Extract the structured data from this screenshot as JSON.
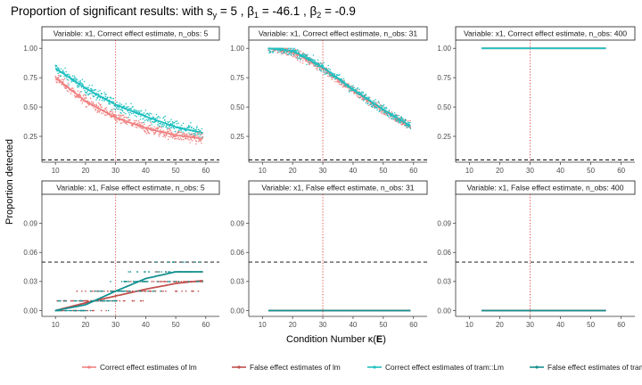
{
  "chart_data": {
    "type": "scatter",
    "title": {
      "prefix": "Proportion of significant results:  with s",
      "sub": "y",
      "s_value": " = 5 ,",
      "b1_label": "β",
      "b1_sub": "1",
      "b1_value": " = -46.1 ,",
      "b2_label": "β",
      "b2_sub": "2",
      "b2_value": " = -0.9"
    },
    "xlabel": {
      "main": "Condition Number κ(",
      "bold": "E",
      "end": ")"
    },
    "ylabel": "Proportion detected",
    "xlim": [
      5.5,
      64.5
    ],
    "xticks": [
      10,
      20,
      30,
      40,
      50,
      60
    ],
    "grid": false,
    "colors": {
      "correct_lm": "#F08080",
      "false_lm": "#C0504D",
      "correct_tram": "#20C0C0",
      "false_tram": "#159090",
      "threshold_line": "#000000",
      "kappa_line": "#E03030"
    },
    "reference_lines": {
      "y_dashed": 0.05,
      "x_dotted": 30
    },
    "rows": [
      {
        "ylim": [
          0.03,
          1.07
        ],
        "yticks": [
          0.25,
          0.5,
          0.75,
          1.0
        ],
        "ytick_labels": [
          "0.25",
          "0.50",
          "0.75",
          "1.00"
        ]
      },
      {
        "ylim": [
          -0.006,
          0.12
        ],
        "yticks": [
          0.0,
          0.03,
          0.06,
          0.09
        ],
        "ytick_labels": [
          "0.00",
          "0.03",
          "0.06",
          "0.09"
        ]
      }
    ],
    "panels": [
      {
        "strip": "Variable: x1, Correct effect estimate, n_obs: 5",
        "row": 0,
        "col": 0,
        "series": [
          {
            "key": "correct_tram",
            "x_range": [
              10,
              59
            ],
            "trend": [
              [
                10,
                0.83
              ],
              [
                20,
                0.66
              ],
              [
                30,
                0.52
              ],
              [
                40,
                0.42
              ],
              [
                50,
                0.33
              ],
              [
                59,
                0.28
              ]
            ],
            "scatter": 0.05
          },
          {
            "key": "correct_lm",
            "x_range": [
              10,
              59
            ],
            "trend": [
              [
                10,
                0.75
              ],
              [
                20,
                0.55
              ],
              [
                30,
                0.41
              ],
              [
                40,
                0.32
              ],
              [
                50,
                0.26
              ],
              [
                59,
                0.23
              ]
            ],
            "scatter": 0.045
          }
        ]
      },
      {
        "strip": "Variable: x1, Correct effect estimate, n_obs: 31",
        "row": 0,
        "col": 1,
        "series": [
          {
            "key": "correct_lm",
            "x_range": [
              12,
              59
            ],
            "trend": [
              [
                12,
                1.0
              ],
              [
                20,
                0.97
              ],
              [
                30,
                0.83
              ],
              [
                40,
                0.64
              ],
              [
                50,
                0.47
              ],
              [
                59,
                0.33
              ]
            ],
            "scatter": 0.04
          },
          {
            "key": "correct_tram",
            "x_range": [
              12,
              59
            ],
            "trend": [
              [
                12,
                1.0
              ],
              [
                20,
                0.98
              ],
              [
                30,
                0.84
              ],
              [
                40,
                0.65
              ],
              [
                50,
                0.48
              ],
              [
                59,
                0.34
              ]
            ],
            "scatter": 0.04
          }
        ]
      },
      {
        "strip": "Variable: x1, Correct effect estimate, n_obs: 400",
        "row": 0,
        "col": 2,
        "series": [
          {
            "key": "correct_lm",
            "x_range": [
              14,
              55
            ],
            "trend": [
              [
                14,
                1.0
              ],
              [
                55,
                1.0
              ]
            ],
            "scatter": 0.0
          },
          {
            "key": "correct_tram",
            "x_range": [
              14,
              55
            ],
            "trend": [
              [
                14,
                1.0
              ],
              [
                55,
                1.0
              ]
            ],
            "scatter": 0.0
          }
        ]
      },
      {
        "strip": "Variable: x1, False effect estimate, n_obs: 5",
        "row": 1,
        "col": 0,
        "series": [
          {
            "key": "false_lm",
            "x_range": [
              10,
              59
            ],
            "trend": [
              [
                10,
                0.0
              ],
              [
                20,
                0.008
              ],
              [
                30,
                0.015
              ],
              [
                40,
                0.022
              ],
              [
                50,
                0.028
              ],
              [
                59,
                0.031
              ]
            ],
            "scatter": 0.0,
            "levels": [
              0.0,
              0.01,
              0.02,
              0.03,
              0.04
            ]
          },
          {
            "key": "false_tram",
            "x_range": [
              10,
              59
            ],
            "trend": [
              [
                10,
                0.0
              ],
              [
                20,
                0.006
              ],
              [
                30,
                0.02
              ],
              [
                40,
                0.033
              ],
              [
                50,
                0.04
              ],
              [
                59,
                0.04
              ]
            ],
            "scatter": 0.0,
            "levels": [
              0.0,
              0.01,
              0.02,
              0.03,
              0.04,
              0.05,
              0.06,
              0.07,
              0.08,
              0.09,
              0.1
            ]
          }
        ]
      },
      {
        "strip": "Variable: x1, False effect estimate, n_obs: 31",
        "row": 1,
        "col": 1,
        "series": [
          {
            "key": "false_lm",
            "x_range": [
              12,
              59
            ],
            "trend": [
              [
                12,
                0.0
              ],
              [
                59,
                0.0
              ]
            ],
            "scatter": 0.0
          },
          {
            "key": "false_tram",
            "x_range": [
              12,
              59
            ],
            "trend": [
              [
                12,
                0.0
              ],
              [
                59,
                0.0
              ]
            ],
            "scatter": 0.0
          }
        ]
      },
      {
        "strip": "Variable: x1, False effect estimate, n_obs: 400",
        "row": 1,
        "col": 2,
        "series": [
          {
            "key": "false_lm",
            "x_range": [
              14,
              55
            ],
            "trend": [
              [
                14,
                0.0
              ],
              [
                55,
                0.0
              ]
            ],
            "scatter": 0.0
          },
          {
            "key": "false_tram",
            "x_range": [
              14,
              55
            ],
            "trend": [
              [
                14,
                0.0
              ],
              [
                55,
                0.0
              ]
            ],
            "scatter": 0.0
          }
        ]
      }
    ],
    "legend": {
      "position": "bottom",
      "entries": [
        {
          "key": "correct_lm",
          "label": "Correct effect estimates of lm"
        },
        {
          "key": "false_lm",
          "label": "False effect estimates of lm"
        },
        {
          "key": "correct_tram",
          "label": "Correct effect estimates of tram::Lm"
        },
        {
          "key": "false_tram",
          "label": "False effect estimates of tram::Lm"
        }
      ]
    }
  }
}
